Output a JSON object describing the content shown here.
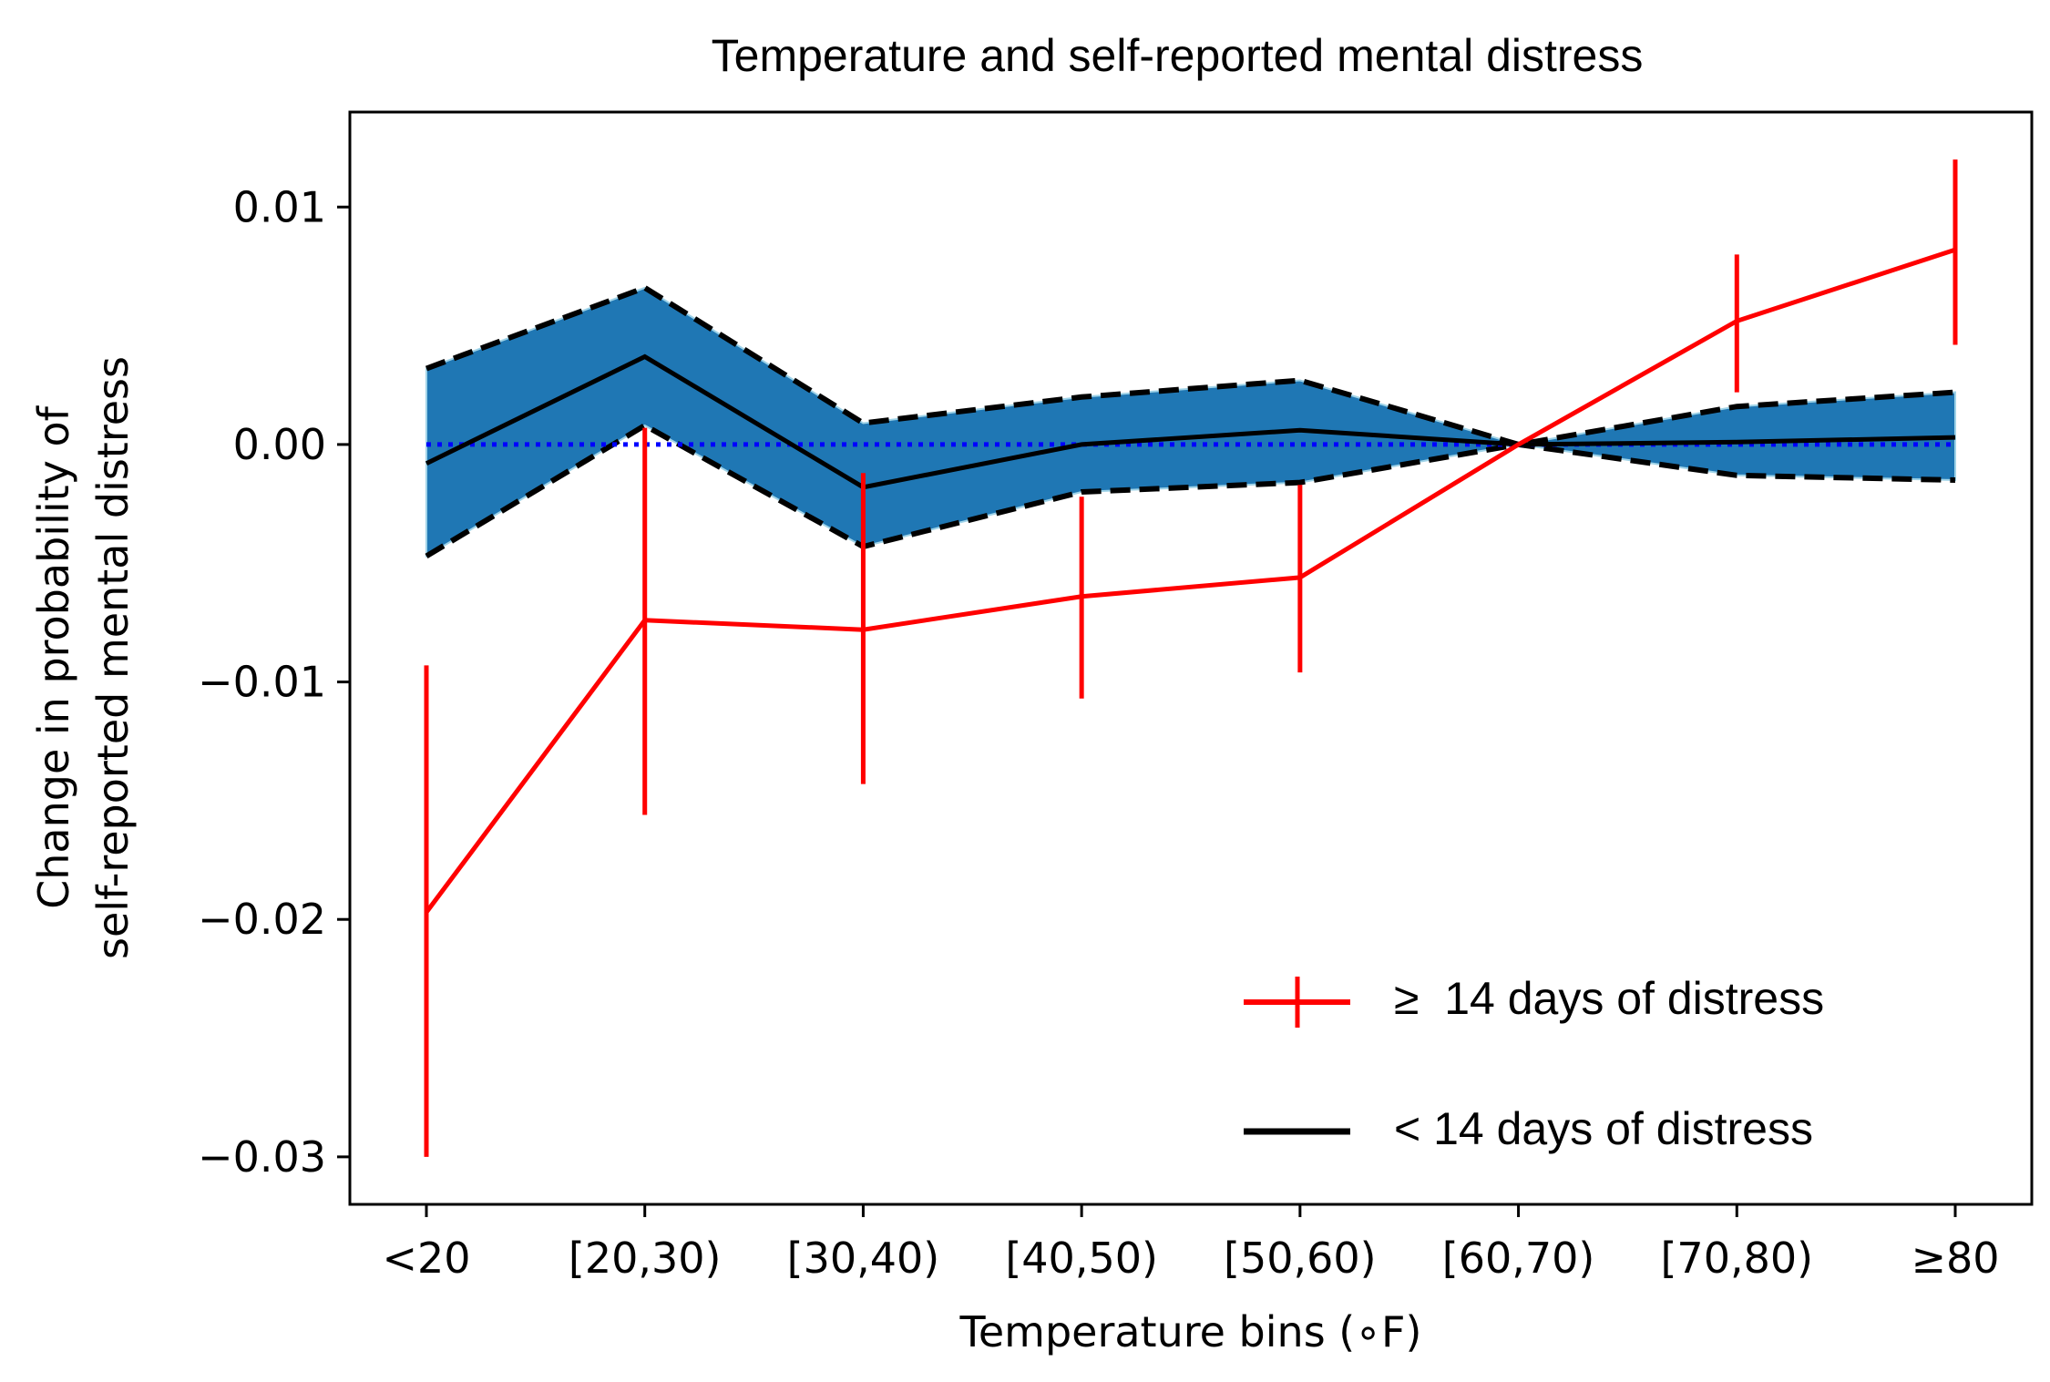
{
  "chart_data": {
    "type": "line",
    "title": "Temperature and self-reported mental distress",
    "xlabel": "Temperature bins (∘F)",
    "ylabel": [
      "Change in probability of",
      "self-reported mental distress"
    ],
    "categories": [
      "<20",
      "[20,30)",
      "[30,40)",
      "[40,50)",
      "[50,60)",
      "[60,70)",
      "[70,80)",
      "≥80"
    ],
    "ylim": [
      -0.032,
      0.014
    ],
    "yticks": [
      0.01,
      0.0,
      -0.01,
      -0.02,
      -0.03
    ],
    "ytick_labels": [
      "0.01",
      "0.00",
      "−0.01",
      "−0.02",
      "−0.03"
    ],
    "reference_line": {
      "y": 0,
      "style": "dotted",
      "color": "#0000ff"
    },
    "series": [
      {
        "name": "≥  14 days of distress",
        "style": "errorbar",
        "color": "#ff0000",
        "values": [
          -0.0197,
          -0.0074,
          -0.0078,
          -0.0064,
          -0.0056,
          0.0,
          0.0052,
          0.0082
        ],
        "lower": [
          -0.03,
          -0.0156,
          -0.0143,
          -0.0107,
          -0.0096,
          0.0,
          0.0022,
          0.0042
        ],
        "upper": [
          -0.0093,
          0.0007,
          -0.0012,
          -0.0022,
          -0.0017,
          0.0,
          0.008,
          0.012
        ]
      },
      {
        "name": "< 14 days of distress",
        "style": "line-with-band",
        "color": "#000000",
        "band_color": "#1f77b4",
        "values": [
          -0.0008,
          0.0037,
          -0.0018,
          0.0,
          0.0006,
          0.0,
          0.0001,
          0.0003
        ],
        "lower": [
          -0.0047,
          0.0008,
          -0.0043,
          -0.002,
          -0.0016,
          0.0,
          -0.0013,
          -0.0015
        ],
        "upper": [
          0.0032,
          0.0066,
          0.0009,
          0.002,
          0.0027,
          0.0,
          0.0016,
          0.0022
        ]
      }
    ],
    "legend_position": "lower-right",
    "grid": false
  }
}
